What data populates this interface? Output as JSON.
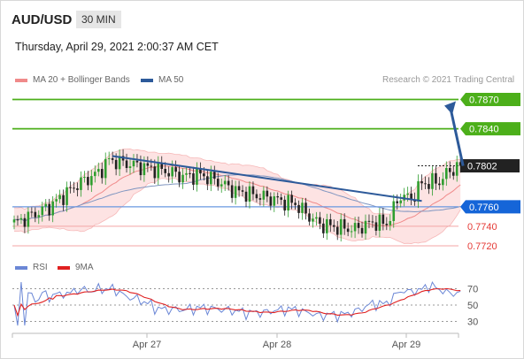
{
  "header": {
    "symbol": "AUD/USD",
    "timeframe": "30 MIN",
    "datetime": "Thursday, April 29, 2021 2:00:37 AM CET"
  },
  "legend": {
    "bollinger": {
      "label": "MA 20 + Bollinger Bands",
      "color": "#f08a8a"
    },
    "ma50": {
      "label": "MA 50",
      "color": "#2d5a9a"
    },
    "credit": "Research © 2021 Trading Central"
  },
  "rsi_legend": {
    "rsi": {
      "label": "RSI",
      "color": "#6b87d6"
    },
    "ma9": {
      "label": "9MA",
      "color": "#e02020"
    }
  },
  "chart_data": [
    {
      "type": "candlestick",
      "title": "AUD/USD",
      "ylim": [
        0.7698,
        0.788
      ],
      "x_tick_labels": [
        "Apr 27",
        "Apr 28",
        "Apr 29"
      ],
      "levels": [
        {
          "value": 0.787,
          "label": "0.7870",
          "kind": "resistance",
          "color": "#4caf1a"
        },
        {
          "value": 0.784,
          "label": "0.7840",
          "kind": "resistance",
          "color": "#4caf1a"
        },
        {
          "value": 0.7802,
          "label": "0.7802",
          "kind": "last",
          "color": "#222222"
        },
        {
          "value": 0.776,
          "label": "0.7760",
          "kind": "pivot",
          "color": "#1565d8"
        },
        {
          "value": 0.774,
          "label": "0.7740",
          "kind": "support",
          "color": "#e53935"
        },
        {
          "value": 0.772,
          "label": "0.7720",
          "kind": "support",
          "color": "#e53935"
        }
      ],
      "trendline": {
        "from": {
          "bar": 28,
          "price": 0.7812
        },
        "to": {
          "bar": 116,
          "price": 0.7766
        }
      },
      "projection_arrow": {
        "from_price": 0.7802,
        "to_price": 0.787
      }
    },
    {
      "type": "line",
      "title": "RSI",
      "ylim": [
        20,
        80
      ],
      "y_ticks": [
        70,
        50,
        30
      ],
      "series": [
        {
          "name": "RSI"
        },
        {
          "name": "9MA"
        }
      ]
    }
  ]
}
